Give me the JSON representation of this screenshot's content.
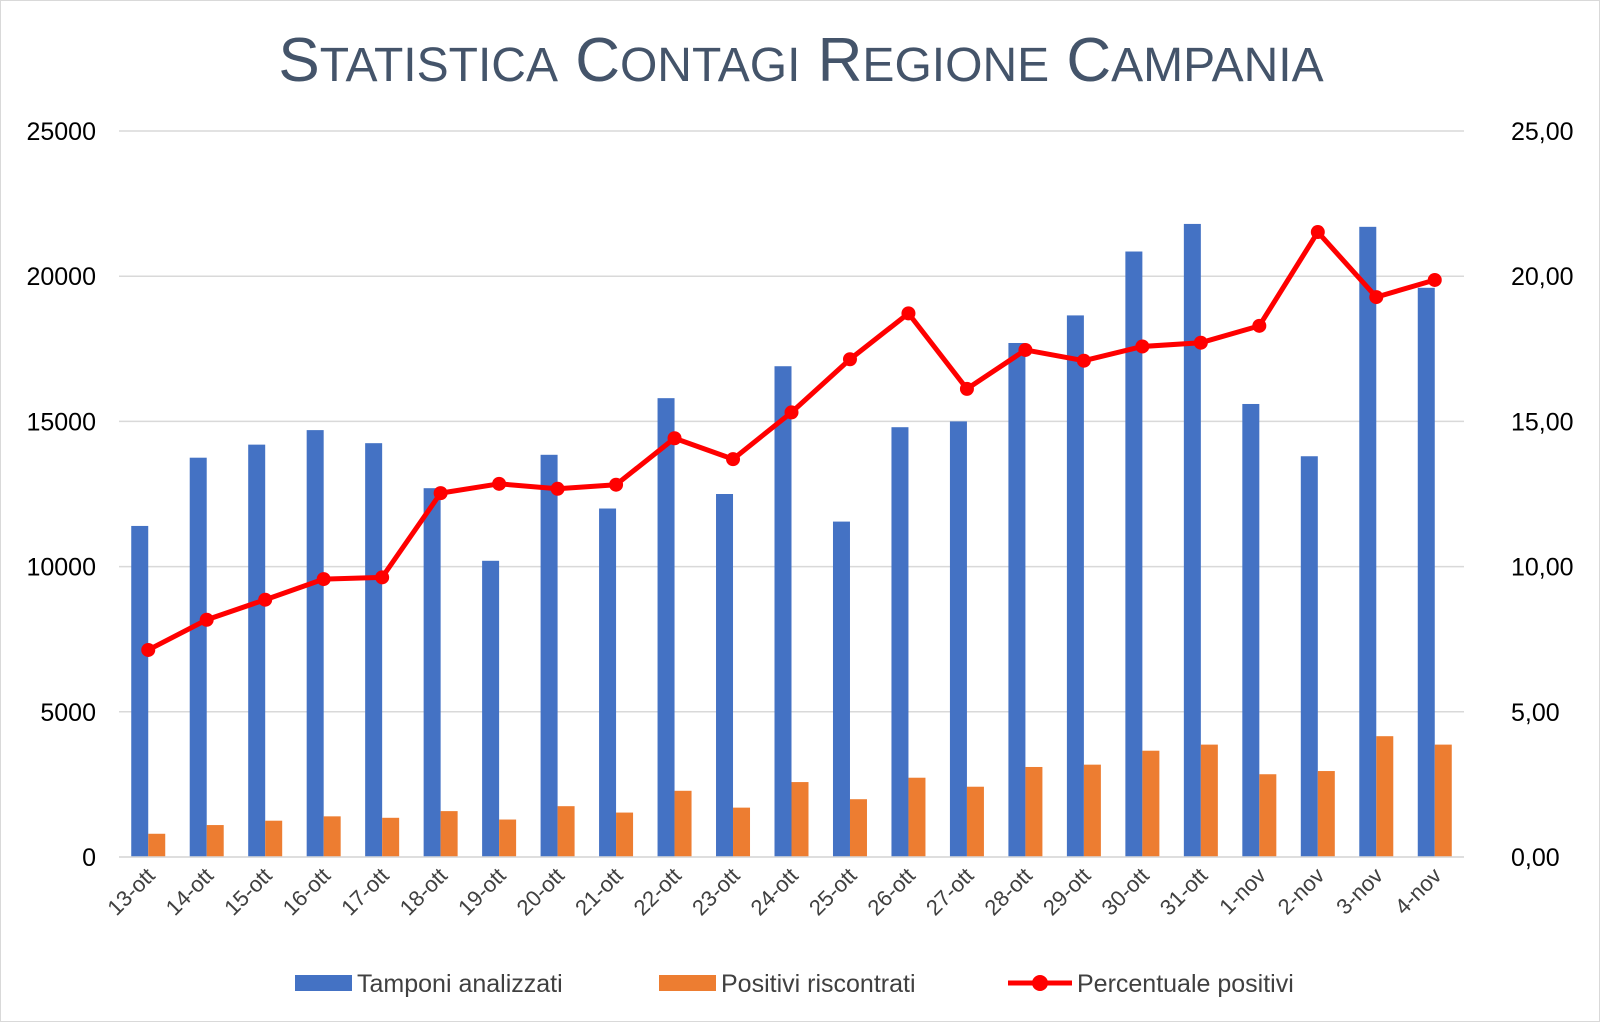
{
  "chart_data": {
    "type": "bar",
    "title": "Statistica Contagi Regione Campania",
    "categories": [
      "13-ott",
      "14-ott",
      "15-ott",
      "16-ott",
      "17-ott",
      "18-ott",
      "19-ott",
      "20-ott",
      "21-ott",
      "22-ott",
      "23-ott",
      "24-ott",
      "25-ott",
      "26-ott",
      "27-ott",
      "28-ott",
      "29-ott",
      "30-ott",
      "31-ott",
      "1-nov",
      "2-nov",
      "3-nov",
      "4-nov"
    ],
    "series": [
      {
        "name": "Tamponi analizzati",
        "type": "bar",
        "axis": "left",
        "color": "#4472c4",
        "values": [
          11400,
          13750,
          14200,
          14700,
          14250,
          12700,
          10200,
          13850,
          12000,
          15800,
          12500,
          16900,
          11550,
          14800,
          15000,
          17700,
          18650,
          20850,
          21800,
          15600,
          13800,
          21700,
          19600
        ]
      },
      {
        "name": "Positivi riscontrati",
        "type": "bar",
        "axis": "left",
        "color": "#ed7d31",
        "values": [
          800,
          1100,
          1250,
          1400,
          1350,
          1580,
          1290,
          1750,
          1530,
          2280,
          1700,
          2580,
          1990,
          2730,
          2420,
          3100,
          3180,
          3660,
          3870,
          2850,
          2960,
          4160,
          3870
        ]
      },
      {
        "name": "Percentuale positivi",
        "type": "line",
        "axis": "right",
        "color": "#ff0000",
        "values": [
          7.13,
          8.17,
          8.86,
          9.57,
          9.63,
          12.53,
          12.85,
          12.68,
          12.82,
          14.42,
          13.7,
          15.31,
          17.14,
          18.72,
          16.12,
          17.46,
          17.09,
          17.58,
          17.71,
          18.29,
          21.52,
          19.28,
          19.87
        ]
      }
    ],
    "yaxis_left": {
      "range": [
        0,
        25000
      ],
      "ticks": [
        0,
        5000,
        10000,
        15000,
        20000,
        25000
      ],
      "tick_labels": [
        "0",
        "5000",
        "10000",
        "15000",
        "20000",
        "25000"
      ]
    },
    "yaxis_right": {
      "range": [
        0,
        25
      ],
      "ticks": [
        0,
        5,
        10,
        15,
        20,
        25
      ],
      "tick_labels": [
        "0,00",
        "5,00",
        "10,00",
        "15,00",
        "20,00",
        "25,00"
      ]
    },
    "xlabel": "",
    "ylabel": "",
    "grid": true,
    "legend_position": "bottom",
    "colors": {
      "title": "#44546a",
      "grid": "#d9d9d9",
      "axis_text": "#000000",
      "category_text": "#404040"
    }
  }
}
